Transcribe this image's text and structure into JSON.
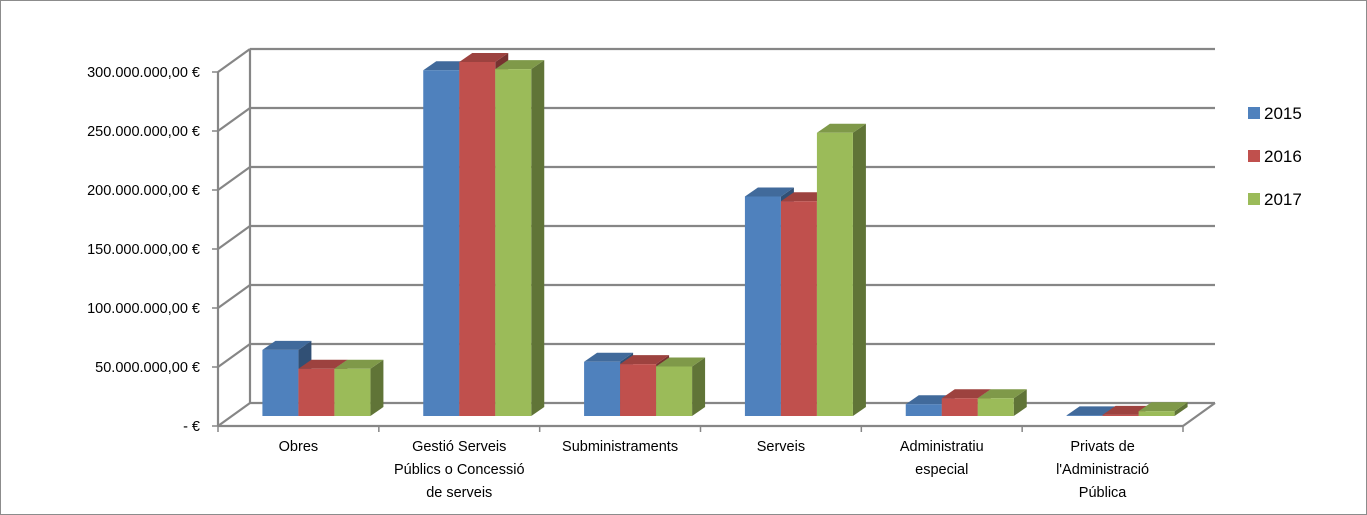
{
  "chart_data": {
    "type": "bar",
    "title": "",
    "xlabel": "",
    "ylabel": "",
    "ylim": [
      0,
      300000000
    ],
    "y_ticks": [
      0,
      50000000,
      100000000,
      150000000,
      200000000,
      250000000,
      300000000
    ],
    "y_tick_labels": [
      "-  €",
      "50.000.000,00 €",
      "100.000.000,00 €",
      "150.000.000,00 €",
      "200.000.000,00 €",
      "250.000.000,00 €",
      "300.000.000,00 €"
    ],
    "grid": true,
    "three_d": true,
    "legend_position": "right",
    "categories": [
      [
        "Obres"
      ],
      [
        "Gestió Serveis",
        "Públics o Concessió",
        "de serveis"
      ],
      [
        "Subministraments"
      ],
      [
        "Serveis"
      ],
      [
        "Administratiu",
        "especial"
      ],
      [
        "Privats de",
        "l'Administració",
        "Pública"
      ]
    ],
    "series": [
      {
        "name": "2015",
        "color": "#4F81BD",
        "values": [
          56000000,
          293000000,
          46000000,
          186000000,
          10000000,
          500000
        ]
      },
      {
        "name": "2016",
        "color": "#C0504D",
        "values": [
          40000000,
          300000000,
          44000000,
          182000000,
          15000000,
          1000000
        ]
      },
      {
        "name": "2017",
        "color": "#9BBB59",
        "values": [
          40000000,
          294000000,
          42000000,
          240000000,
          15000000,
          4000000
        ]
      }
    ]
  }
}
